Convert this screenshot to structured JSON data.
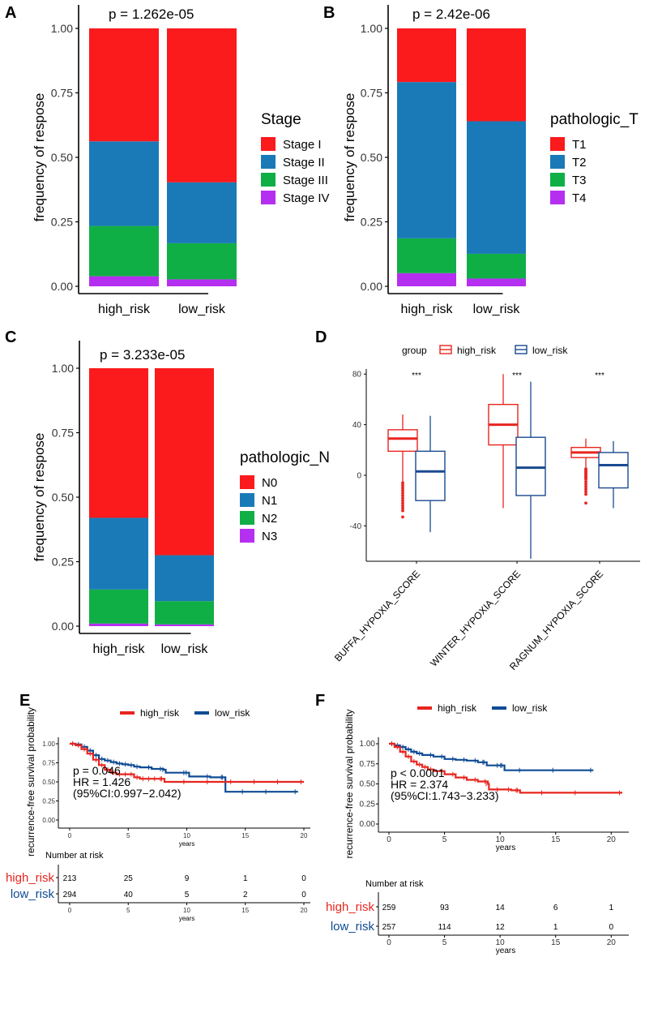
{
  "colors": {
    "stage1": "#fb1a1c",
    "stage2": "#1a7ab8",
    "stage3": "#10af46",
    "stage4": "#b52ff0",
    "high": "#e8251f",
    "low": "#1a4a90",
    "axis": "#000000",
    "km_low": "#0f4b94"
  },
  "panels": {
    "A": "A",
    "B": "B",
    "C": "C",
    "D": "D",
    "E": "E",
    "F": "F"
  },
  "chart_data": [
    {
      "id": "A",
      "type": "bar",
      "stacked": true,
      "title": "p =  1.262e-05",
      "ylabel": "frequency of respose",
      "categories": [
        "high_risk",
        "low_risk"
      ],
      "yticks": [
        "0.00",
        "0.25",
        "0.50",
        "0.75",
        "1.00"
      ],
      "ylim": [
        0,
        1
      ],
      "legend_title": "Stage",
      "series": [
        {
          "name": "Stage I",
          "values": [
            0.438,
            0.597
          ]
        },
        {
          "name": "Stage II",
          "values": [
            0.328,
            0.236
          ]
        },
        {
          "name": "Stage III",
          "values": [
            0.195,
            0.14
          ]
        },
        {
          "name": "Stage IV",
          "values": [
            0.039,
            0.027
          ]
        }
      ]
    },
    {
      "id": "B",
      "type": "bar",
      "stacked": true,
      "title": "p =  2.42e-06",
      "ylabel": "frequency of respose",
      "categories": [
        "high_risk",
        "low_risk"
      ],
      "yticks": [
        "0.00",
        "0.25",
        "0.50",
        "0.75",
        "1.00"
      ],
      "ylim": [
        0,
        1
      ],
      "legend_title": "pathologic_T",
      "series": [
        {
          "name": "T1",
          "values": [
            0.208,
            0.36
          ]
        },
        {
          "name": "T2",
          "values": [
            0.606,
            0.514
          ]
        },
        {
          "name": "T3",
          "values": [
            0.135,
            0.096
          ]
        },
        {
          "name": "T4",
          "values": [
            0.051,
            0.03
          ]
        }
      ]
    },
    {
      "id": "C",
      "type": "bar",
      "stacked": true,
      "title": "p =  3.233e-05",
      "ylabel": "frequency of respose",
      "categories": [
        "high_risk",
        "low_risk"
      ],
      "yticks": [
        "0.00",
        "0.25",
        "0.50",
        "0.75",
        "1.00"
      ],
      "ylim": [
        0,
        1
      ],
      "legend_title": "pathologic_N",
      "series": [
        {
          "name": "N0",
          "values": [
            0.58,
            0.725
          ]
        },
        {
          "name": "N1",
          "values": [
            0.278,
            0.178
          ]
        },
        {
          "name": "N2",
          "values": [
            0.132,
            0.09
          ]
        },
        {
          "name": "N3",
          "values": [
            0.01,
            0.007
          ]
        }
      ]
    },
    {
      "id": "D",
      "type": "box",
      "legend_title": "group",
      "groups": [
        "high_risk",
        "low_risk"
      ],
      "categories": [
        "BUFFA_HYPOXIA_SCORE",
        "WINTER_HYPOXIA_SCORE",
        "RAGNUM_HYPOXIA_SCORE"
      ],
      "significance": [
        "***",
        "***",
        "***"
      ],
      "yticks": [
        "-40",
        "0",
        "40",
        "80"
      ],
      "ytick_values": [
        -40,
        0,
        40,
        80
      ],
      "ylim": [
        -68,
        84
      ],
      "boxes": [
        {
          "cat": 0,
          "group": 0,
          "min": -5,
          "q1": 19,
          "median": 29,
          "q3": 36,
          "max": 48,
          "outliers": [
            -6,
            -8,
            -10,
            -12,
            -14,
            -16,
            -18,
            -20,
            -22,
            -24,
            -26,
            -28,
            -33
          ]
        },
        {
          "cat": 0,
          "group": 1,
          "min": -45,
          "q1": -20,
          "median": 3,
          "q3": 19,
          "max": 47,
          "outliers": []
        },
        {
          "cat": 1,
          "group": 0,
          "min": -26,
          "q1": 24,
          "median": 40,
          "q3": 56,
          "max": 80,
          "outliers": []
        },
        {
          "cat": 1,
          "group": 1,
          "min": -66,
          "q1": -16,
          "median": 6,
          "q3": 30,
          "max": 74,
          "outliers": []
        },
        {
          "cat": 2,
          "group": 0,
          "min": 6,
          "q1": 14,
          "median": 18,
          "q3": 22,
          "max": 29,
          "outliers": [
            5,
            4,
            3,
            2,
            1,
            0,
            -1,
            -2,
            -3,
            -5,
            -7,
            -9,
            -11,
            -13,
            -15,
            -22
          ]
        },
        {
          "cat": 2,
          "group": 1,
          "min": -26,
          "q1": -10,
          "median": 8,
          "q3": 18,
          "max": 27,
          "outliers": []
        }
      ]
    },
    {
      "id": "E",
      "type": "line",
      "kind": "kaplan-meier",
      "ylabel": "recurrence-free survival  probability",
      "xlabel": "years",
      "xticks": [
        "0",
        "5",
        "10",
        "15",
        "20"
      ],
      "yticks": [
        "0.00",
        "0.25",
        "0.50",
        "0.75",
        "1.00"
      ],
      "xlim": [
        0,
        20
      ],
      "ylim": [
        0,
        1
      ],
      "series": [
        {
          "name": "high_risk",
          "x": [
            0,
            0.5,
            1,
            1.5,
            2,
            2.5,
            3,
            3.5,
            4,
            4.5,
            5,
            5.5,
            6,
            6.5,
            7,
            7.5,
            8,
            8.1,
            10,
            12,
            14,
            16,
            18,
            20
          ],
          "y": [
            1.0,
            0.98,
            0.93,
            0.87,
            0.79,
            0.72,
            0.66,
            0.62,
            0.6,
            0.6,
            0.6,
            0.56,
            0.54,
            0.54,
            0.54,
            0.54,
            0.54,
            0.5,
            0.5,
            0.5,
            0.5,
            0.5,
            0.5,
            0.5
          ]
        },
        {
          "name": "low_risk",
          "x": [
            0,
            0.5,
            1,
            1.5,
            2,
            2.5,
            3,
            3.5,
            4,
            4.5,
            5,
            5.5,
            6,
            7,
            8,
            8.2,
            10,
            10.2,
            12,
            13.2,
            13.3,
            15,
            17,
            19.5
          ],
          "y": [
            1.0,
            0.99,
            0.96,
            0.91,
            0.85,
            0.8,
            0.78,
            0.76,
            0.74,
            0.73,
            0.72,
            0.7,
            0.69,
            0.67,
            0.66,
            0.62,
            0.62,
            0.57,
            0.56,
            0.56,
            0.37,
            0.37,
            0.37,
            0.37
          ]
        }
      ],
      "stats": [
        "p = 0.046",
        "HR = 1.426",
        "(95%CI:0.997−2.042)"
      ],
      "risk_table": {
        "title": "Number at risk",
        "xlabel": "years",
        "rows": [
          {
            "label": "high_risk",
            "values": [
              "213",
              "25",
              "9",
              "1",
              "0"
            ]
          },
          {
            "label": "low_risk",
            "values": [
              "294",
              "40",
              "5",
              "2",
              "0"
            ]
          }
        ]
      }
    },
    {
      "id": "F",
      "type": "line",
      "kind": "kaplan-meier",
      "ylabel": "recurrence-free survival  probability",
      "xlabel": "years",
      "xticks": [
        "0",
        "5",
        "10",
        "15",
        "20"
      ],
      "yticks": [
        "0.00",
        "0.25",
        "0.50",
        "0.75",
        "1.00"
      ],
      "xlim": [
        0,
        21
      ],
      "ylim": [
        0,
        1
      ],
      "series": [
        {
          "name": "high_risk",
          "x": [
            0,
            0.5,
            1,
            1.5,
            2,
            2.5,
            3,
            3.5,
            4,
            5,
            6,
            7,
            8,
            8.9,
            9,
            10,
            11,
            11.7,
            11.8,
            14,
            17,
            21
          ],
          "y": [
            1.0,
            0.96,
            0.9,
            0.84,
            0.78,
            0.74,
            0.71,
            0.68,
            0.66,
            0.62,
            0.58,
            0.55,
            0.53,
            0.5,
            0.43,
            0.43,
            0.42,
            0.42,
            0.39,
            0.39,
            0.39,
            0.39
          ]
        },
        {
          "name": "low_risk",
          "x": [
            0,
            0.5,
            1,
            1.5,
            2,
            2.5,
            3,
            4,
            5,
            6,
            7,
            8,
            8.7,
            8.8,
            10,
            10.3,
            10.4,
            12,
            15,
            18.4
          ],
          "y": [
            1.0,
            0.98,
            0.96,
            0.93,
            0.9,
            0.88,
            0.86,
            0.84,
            0.81,
            0.8,
            0.79,
            0.77,
            0.77,
            0.73,
            0.73,
            0.73,
            0.67,
            0.67,
            0.67,
            0.67
          ]
        }
      ],
      "stats": [
        "p < 0.0001",
        "HR = 2.374",
        "(95%CI:1.743−3.233)"
      ],
      "risk_table": {
        "title": "Number at risk",
        "xlabel": "years",
        "rows": [
          {
            "label": "high_risk",
            "values": [
              "259",
              "93",
              "14",
              "6",
              "1"
            ]
          },
          {
            "label": "low_risk",
            "values": [
              "257",
              "114",
              "12",
              "1",
              "0"
            ]
          }
        ]
      }
    }
  ]
}
